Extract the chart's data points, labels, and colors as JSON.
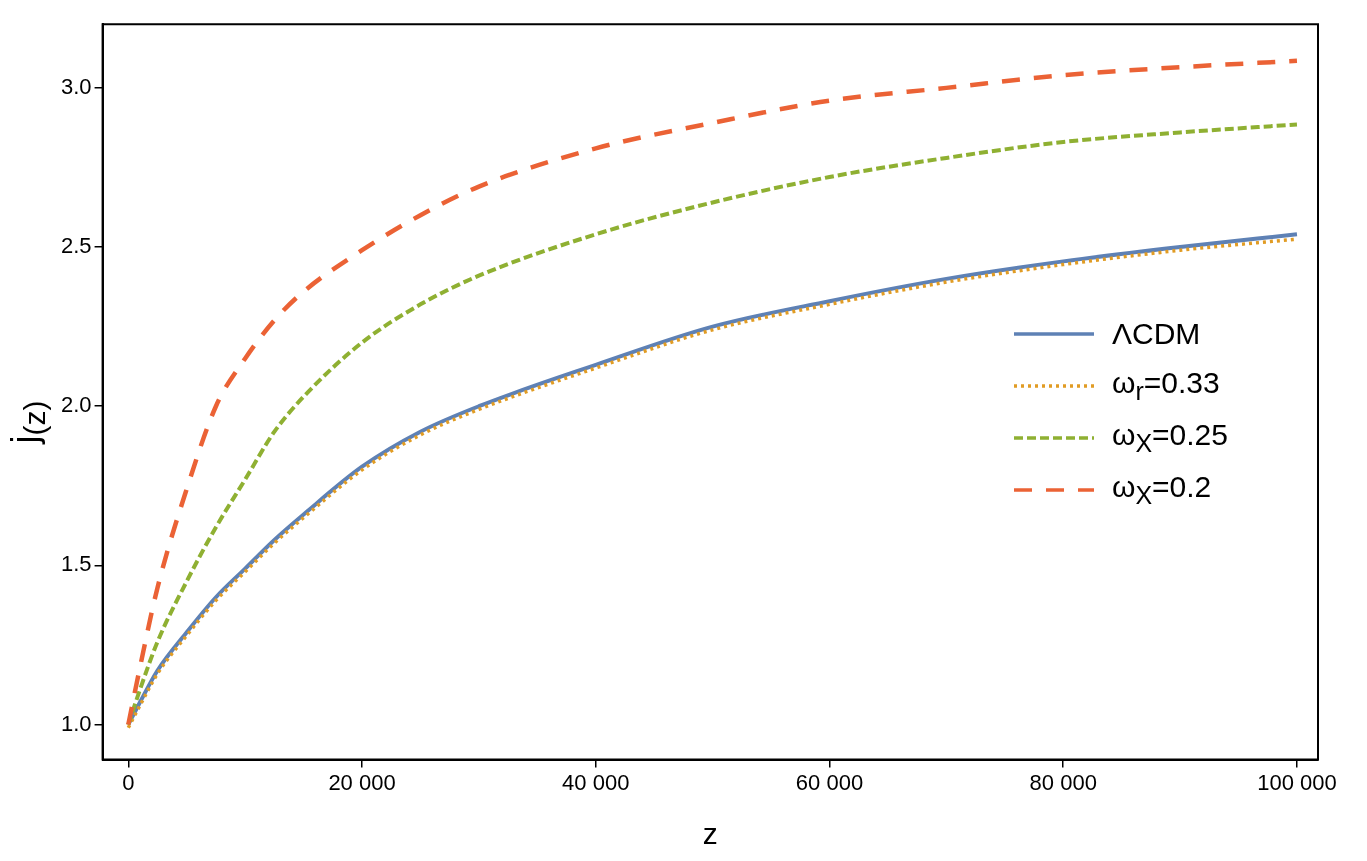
{
  "chart_data": {
    "type": "line",
    "xlabel": "z",
    "ylabel": "j$_{(z)}$",
    "x": [
      0,
      1000,
      2500,
      5000,
      7500,
      10000,
      12500,
      15000,
      20000,
      25000,
      30000,
      40000,
      50000,
      60000,
      70000,
      80000,
      90000,
      100000
    ],
    "series": [
      {
        "name": "ΛCDM",
        "color": "#5e81b5",
        "line_style": "solid",
        "values": [
          1.0,
          1.07,
          1.17,
          1.29,
          1.4,
          1.49,
          1.58,
          1.66,
          1.81,
          1.92,
          2.0,
          2.13,
          2.25,
          2.33,
          2.4,
          2.455,
          2.5,
          2.54
        ]
      },
      {
        "name": "ω$_{r}$=0.33",
        "color": "#e19c24",
        "line_style": "dotted",
        "values": [
          0.99,
          1.06,
          1.16,
          1.28,
          1.39,
          1.48,
          1.57,
          1.65,
          1.8,
          1.91,
          1.99,
          2.12,
          2.24,
          2.32,
          2.39,
          2.445,
          2.49,
          2.525
        ]
      },
      {
        "name": "ω$_{X}$=0.25",
        "color": "#8fb032",
        "line_style": "dashed",
        "values": [
          1.0,
          1.11,
          1.26,
          1.45,
          1.62,
          1.77,
          1.92,
          2.03,
          2.2,
          2.32,
          2.41,
          2.54,
          2.64,
          2.72,
          2.78,
          2.83,
          2.86,
          2.885
        ]
      },
      {
        "name": "ω$_{X}$=0.2",
        "color": "#eb6235",
        "line_style": "longdash",
        "values": [
          1.0,
          1.18,
          1.43,
          1.74,
          2.0,
          2.15,
          2.27,
          2.36,
          2.49,
          2.6,
          2.69,
          2.81,
          2.89,
          2.96,
          3.0,
          3.04,
          3.065,
          3.085
        ]
      }
    ],
    "xlim": [
      -2200,
      101800
    ],
    "ylim": [
      0.89,
      3.2
    ],
    "xticks": [
      0,
      {
        "value": 20000,
        "label": "20 000"
      },
      {
        "value": 40000,
        "label": "40 000"
      },
      {
        "value": 60000,
        "label": "60 000"
      },
      {
        "value": 80000,
        "label": "80 000"
      },
      {
        "value": 100000,
        "label": "100 000"
      }
    ],
    "yticks": [
      {
        "value": 1,
        "label": "1.0"
      },
      {
        "value": 1.5,
        "label": "1.5"
      },
      {
        "value": 2,
        "label": "2.0"
      },
      {
        "value": 2.5,
        "label": "2.5"
      },
      {
        "value": 3,
        "label": "3.0"
      }
    ],
    "grid": false,
    "legend": "right"
  }
}
